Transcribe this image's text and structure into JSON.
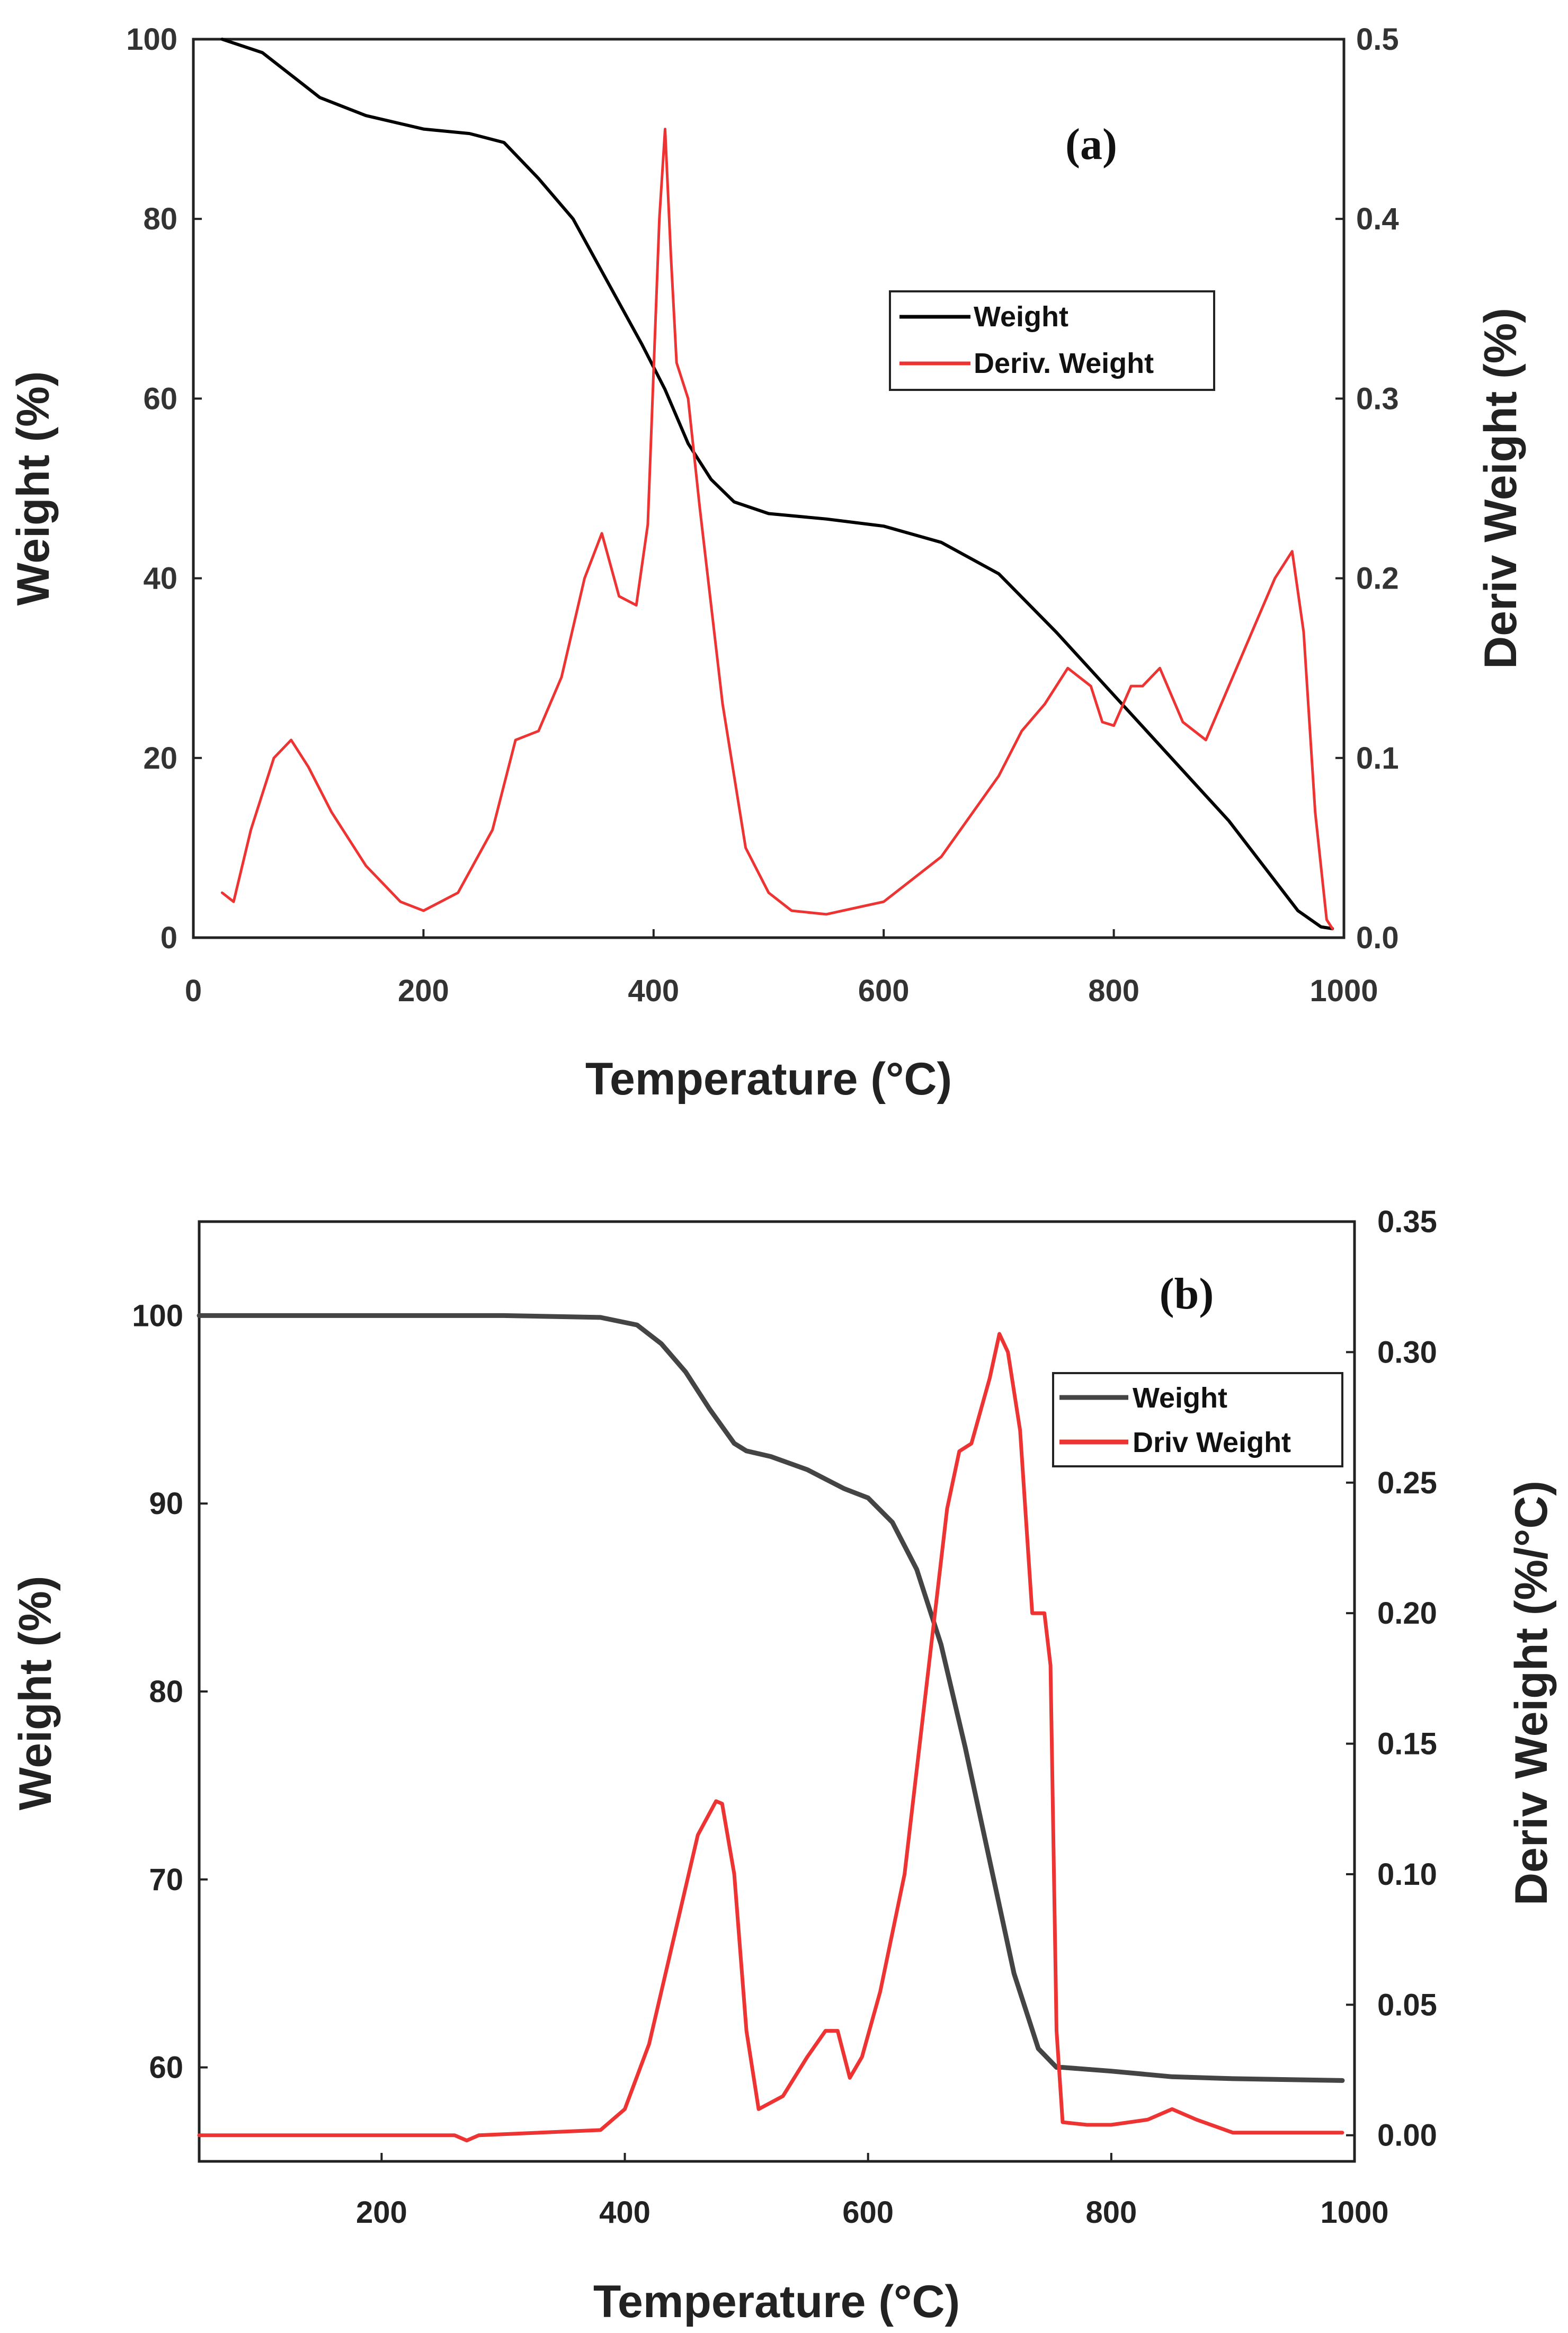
{
  "chart_data": [
    {
      "type": "line",
      "panel_label": "(a)",
      "xlabel": "Temperature (°C)",
      "ylabel": "Weight (%)",
      "y2label": "Deriv Weight (%)",
      "xlim": [
        0,
        1000
      ],
      "ylim": [
        0,
        100
      ],
      "y2lim": [
        0,
        0.5
      ],
      "xticks": [
        "0",
        "200",
        "400",
        "600",
        "800",
        "1000"
      ],
      "yticks": [
        "0",
        "20",
        "40",
        "60",
        "80",
        "100"
      ],
      "y2ticks": [
        "0.0",
        "0.1",
        "0.2",
        "0.3",
        "0.4",
        "0.5"
      ],
      "legend": {
        "placement": "top-right",
        "entries": [
          "Weight",
          "Deriv. Weight"
        ]
      },
      "colors": {
        "weight": "#000000",
        "deriv": "#ee3333"
      },
      "series": [
        {
          "name": "Weight",
          "axis": "left",
          "x": [
            25,
            60,
            90,
            110,
            150,
            200,
            240,
            270,
            300,
            330,
            360,
            390,
            410,
            430,
            450,
            470,
            500,
            550,
            600,
            650,
            700,
            750,
            800,
            850,
            900,
            930,
            960,
            980,
            990
          ],
          "y": [
            100,
            98.5,
            95.5,
            93.5,
            91.5,
            90,
            89.5,
            88.5,
            84.5,
            80,
            73,
            66,
            61,
            55,
            51,
            48.5,
            47.2,
            46.6,
            45.8,
            44,
            40.5,
            34,
            27,
            20,
            13,
            8,
            3,
            1.2,
            1
          ]
        },
        {
          "name": "Deriv. Weight",
          "axis": "right",
          "x": [
            25,
            35,
            50,
            70,
            85,
            100,
            120,
            150,
            180,
            200,
            230,
            260,
            280,
            300,
            320,
            340,
            355,
            370,
            385,
            395,
            405,
            410,
            415,
            420,
            430,
            440,
            460,
            480,
            500,
            520,
            550,
            600,
            650,
            700,
            720,
            740,
            760,
            780,
            790,
            800,
            815,
            825,
            840,
            860,
            880,
            900,
            920,
            940,
            955,
            965,
            975,
            985,
            990
          ],
          "y": [
            0.025,
            0.02,
            0.06,
            0.1,
            0.11,
            0.095,
            0.07,
            0.04,
            0.02,
            0.015,
            0.025,
            0.06,
            0.11,
            0.115,
            0.145,
            0.2,
            0.225,
            0.19,
            0.185,
            0.23,
            0.4,
            0.45,
            0.38,
            0.32,
            0.3,
            0.24,
            0.13,
            0.05,
            0.025,
            0.015,
            0.013,
            0.02,
            0.045,
            0.09,
            0.115,
            0.13,
            0.15,
            0.14,
            0.12,
            0.118,
            0.14,
            0.14,
            0.15,
            0.12,
            0.11,
            0.14,
            0.17,
            0.2,
            0.215,
            0.17,
            0.07,
            0.01,
            0.005
          ]
        }
      ]
    },
    {
      "type": "line",
      "panel_label": "(b)",
      "xlabel": "Temperature (°C)",
      "ylabel": "Weight (%)",
      "y2label": "Deriv Weight (%/°C)",
      "xlim": [
        50,
        1000
      ],
      "ylim": [
        55,
        105
      ],
      "y2lim": [
        -0.01,
        0.35
      ],
      "xticks": [
        "200",
        "400",
        "600",
        "800",
        "1000"
      ],
      "yticks": [
        "60",
        "70",
        "80",
        "90",
        "100"
      ],
      "y2ticks": [
        "0.00",
        "0.05",
        "0.10",
        "0.15",
        "0.20",
        "0.25",
        "0.30",
        "0.35"
      ],
      "legend": {
        "placement": "top-right",
        "entries": [
          "Weight",
          "Driv Weight"
        ]
      },
      "colors": {
        "weight": "#444444",
        "deriv": "#ee3333"
      },
      "series": [
        {
          "name": "Weight",
          "axis": "left",
          "x": [
            50,
            200,
            300,
            380,
            410,
            430,
            450,
            470,
            490,
            500,
            520,
            550,
            580,
            600,
            620,
            640,
            660,
            680,
            700,
            720,
            740,
            755,
            760,
            800,
            850,
            900,
            990
          ],
          "y": [
            100,
            100,
            100,
            99.9,
            99.5,
            98.5,
            97,
            95,
            93.2,
            92.8,
            92.5,
            91.8,
            90.8,
            90.3,
            89,
            86.5,
            82.5,
            77,
            71,
            65,
            61,
            60,
            60,
            59.8,
            59.5,
            59.4,
            59.3
          ]
        },
        {
          "name": "Driv Weight",
          "axis": "right",
          "x": [
            50,
            260,
            270,
            280,
            380,
            400,
            420,
            440,
            460,
            475,
            480,
            490,
            500,
            510,
            530,
            550,
            565,
            575,
            585,
            595,
            610,
            630,
            650,
            665,
            675,
            685,
            700,
            708,
            715,
            725,
            735,
            740,
            745,
            750,
            755,
            760,
            780,
            800,
            830,
            850,
            870,
            900,
            990
          ],
          "y": [
            0,
            0,
            -0.002,
            0,
            0.002,
            0.01,
            0.035,
            0.075,
            0.115,
            0.128,
            0.127,
            0.1,
            0.04,
            0.01,
            0.015,
            0.03,
            0.04,
            0.04,
            0.022,
            0.03,
            0.055,
            0.1,
            0.18,
            0.24,
            0.262,
            0.265,
            0.29,
            0.307,
            0.3,
            0.27,
            0.2,
            0.2,
            0.2,
            0.18,
            0.04,
            0.005,
            0.004,
            0.004,
            0.006,
            0.01,
            0.006,
            0.001,
            0.001
          ]
        }
      ]
    }
  ]
}
